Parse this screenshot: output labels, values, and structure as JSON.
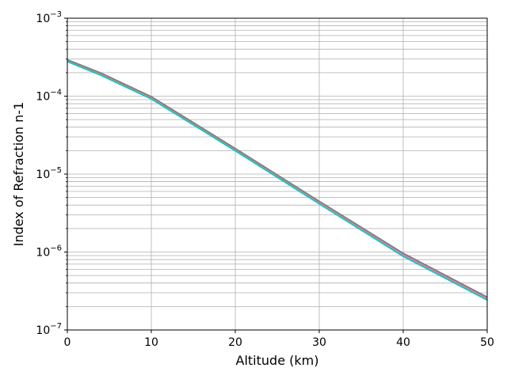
{
  "chart_data": {
    "type": "line",
    "title": "",
    "xlabel": "Altitude (km)",
    "ylabel": "Index of Refraction n-1",
    "xlim": [
      0,
      50
    ],
    "ylim": [
      1e-07,
      0.001
    ],
    "yscale": "log",
    "grid": {
      "major": true,
      "minor_y": true
    },
    "x_ticks": [
      {
        "value": 0,
        "label": "0"
      },
      {
        "value": 10,
        "label": "10"
      },
      {
        "value": 20,
        "label": "20"
      },
      {
        "value": 30,
        "label": "30"
      },
      {
        "value": 40,
        "label": "40"
      },
      {
        "value": 50,
        "label": "50"
      }
    ],
    "y_ticks": [
      {
        "value": 1e-07,
        "base": "10",
        "exp": "−7"
      },
      {
        "value": 1e-06,
        "base": "10",
        "exp": "−6"
      },
      {
        "value": 1e-05,
        "base": "10",
        "exp": "−5"
      },
      {
        "value": 0.0001,
        "base": "10",
        "exp": "−4"
      },
      {
        "value": 0.001,
        "base": "10",
        "exp": "−3"
      }
    ],
    "series": [
      {
        "color": "#1f77b4",
        "x": [
          0,
          4,
          10,
          20,
          30,
          40,
          50
        ],
        "y": [
          0.00029,
          0.000195,
          9.7e-05,
          2.1e-05,
          4.4e-06,
          9.5e-07,
          2.6e-07
        ]
      },
      {
        "color": "#ff7f0e",
        "x": [
          0,
          4,
          10,
          20,
          30,
          40,
          50
        ],
        "y": [
          0.00029,
          0.000195,
          9.7e-05,
          2.1e-05,
          4.4e-06,
          9.5e-07,
          2.6e-07
        ]
      },
      {
        "color": "#2ca02c",
        "x": [
          0,
          4,
          10,
          20,
          30,
          40,
          50
        ],
        "y": [
          0.000288,
          0.000193,
          9.6e-05,
          2.08e-05,
          4.35e-06,
          9.4e-07,
          2.57e-07
        ]
      },
      {
        "color": "#d62728",
        "x": [
          0,
          4,
          10,
          20,
          30,
          40,
          50
        ],
        "y": [
          0.00029,
          0.000196,
          9.75e-05,
          2.11e-05,
          4.42e-06,
          9.55e-07,
          2.6e-07
        ]
      },
      {
        "color": "#9467bd",
        "x": [
          0,
          4,
          10,
          20,
          30,
          40,
          50
        ],
        "y": [
          0.000285,
          0.000191,
          9.5e-05,
          2.06e-05,
          4.3e-06,
          9.2e-07,
          2.5e-07
        ]
      },
      {
        "color": "#8c564b",
        "x": [
          0,
          4,
          10,
          20,
          30,
          40,
          50
        ],
        "y": [
          0.000292,
          0.000197,
          9.8e-05,
          2.12e-05,
          4.45e-06,
          9.6e-07,
          2.62e-07
        ]
      },
      {
        "color": "#e377c2",
        "x": [
          0,
          4,
          10,
          20,
          30,
          40,
          50
        ],
        "y": [
          0.000287,
          0.000192,
          9.55e-05,
          2.07e-05,
          4.32e-06,
          9.3e-07,
          2.53e-07
        ]
      },
      {
        "color": "#7f7f7f",
        "x": [
          0,
          4,
          10,
          20,
          30,
          40,
          50
        ],
        "y": [
          0.000293,
          0.000198,
          9.85e-05,
          2.13e-05,
          4.48e-06,
          9.65e-07,
          2.64e-07
        ]
      },
      {
        "color": "#bcbd22",
        "x": [
          0,
          4,
          10,
          20,
          30,
          40,
          50
        ],
        "y": [
          0.00028,
          0.000187,
          9.3e-05,
          2.01e-05,
          4.2e-06,
          8.9e-07,
          2.45e-07
        ]
      },
      {
        "color": "#17becf",
        "x": [
          0,
          4,
          10,
          20,
          30,
          40,
          50
        ],
        "y": [
          0.000278,
          0.000185,
          9.2e-05,
          1.99e-05,
          4.15e-06,
          8.8e-07,
          2.42e-07
        ]
      }
    ]
  }
}
